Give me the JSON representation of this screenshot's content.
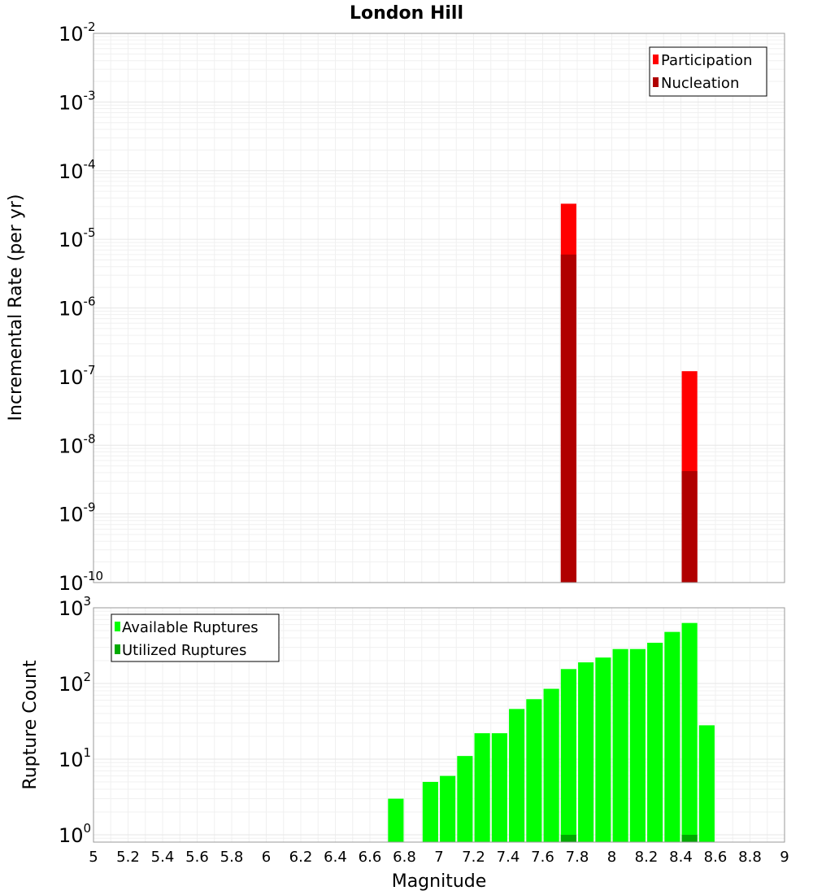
{
  "chart_data": [
    {
      "type": "bar",
      "title": "London Hill",
      "xlabel": "",
      "ylabel": "Incremental Rate (per yr)",
      "yscale": "log",
      "ylim": [
        1e-10,
        0.01
      ],
      "xlim": [
        5,
        9
      ],
      "y_ticks": [
        {
          "base": "10",
          "exp": "-2"
        },
        {
          "base": "10",
          "exp": "-3"
        },
        {
          "base": "10",
          "exp": "-4"
        },
        {
          "base": "10",
          "exp": "-5"
        },
        {
          "base": "10",
          "exp": "-6"
        },
        {
          "base": "10",
          "exp": "-7"
        },
        {
          "base": "10",
          "exp": "-8"
        },
        {
          "base": "10",
          "exp": "-9"
        },
        {
          "base": "10",
          "exp": "-10"
        }
      ],
      "legend_position": "top-right",
      "grid": true,
      "series": [
        {
          "name": "Participation",
          "color": "#ff0000",
          "x": [
            7.75,
            8.45
          ],
          "values": [
            3.3e-05,
            1.2e-07
          ]
        },
        {
          "name": "Nucleation",
          "color": "#b00000",
          "x": [
            7.75,
            8.45
          ],
          "values": [
            6e-06,
            4.2e-09
          ]
        }
      ]
    },
    {
      "type": "bar",
      "xlabel": "Magnitude",
      "ylabel": "Rupture Count",
      "yscale": "log",
      "ylim": [
        0.8,
        1000
      ],
      "xlim": [
        5,
        9
      ],
      "y_ticks": [
        {
          "value": 1000,
          "base": "10",
          "exp": "3"
        },
        {
          "value": 100,
          "base": "10",
          "exp": "2"
        },
        {
          "value": 10,
          "base": "10",
          "exp": "1"
        },
        {
          "value": 1,
          "base": "10",
          "exp": "0"
        }
      ],
      "x_ticks": [
        "5",
        "5.2",
        "5.4",
        "5.6",
        "5.8",
        "6",
        "6.2",
        "6.4",
        "6.6",
        "6.8",
        "7",
        "7.2",
        "7.4",
        "7.6",
        "7.8",
        "8",
        "8.2",
        "8.4",
        "8.6",
        "8.8",
        "9"
      ],
      "legend_position": "top-left",
      "grid": true,
      "series": [
        {
          "name": "Available Ruptures",
          "color": "#00ff00",
          "x": [
            6.75,
            6.95,
            7.05,
            7.15,
            7.25,
            7.35,
            7.45,
            7.55,
            7.65,
            7.75,
            7.85,
            7.95,
            8.05,
            8.15,
            8.25,
            8.35,
            8.45,
            8.55
          ],
          "values": [
            3,
            5,
            6,
            11,
            22,
            22,
            46,
            62,
            85,
            155,
            190,
            220,
            285,
            285,
            345,
            480,
            630,
            28
          ]
        },
        {
          "name": "Utilized Ruptures",
          "color": "#00aa00",
          "x": [
            7.75,
            8.45
          ],
          "values": [
            1,
            1
          ]
        }
      ]
    }
  ]
}
